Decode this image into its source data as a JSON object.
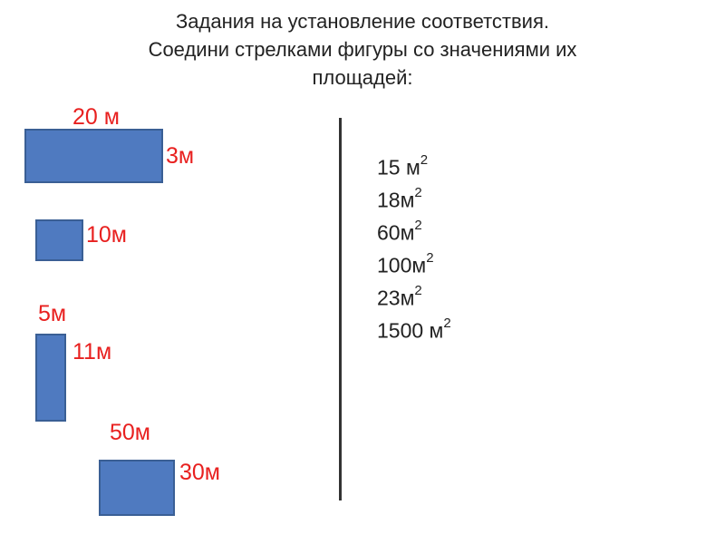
{
  "title": {
    "line1": "Задания на установление соответствия.",
    "line2": "Соедини стрелками фигуры со  значениями их",
    "line3": "площадей:"
  },
  "shapes": [
    {
      "width_label": "20 м",
      "height_label": "3м"
    },
    {
      "width_label": "",
      "height_label": "10м"
    },
    {
      "width_label": "5м",
      "height_label": "11м"
    },
    {
      "width_label": "50м",
      "height_label": "30м"
    }
  ],
  "answers": [
    {
      "value": "15 м",
      "exponent": "2"
    },
    {
      "value": "18м",
      "exponent": "2"
    },
    {
      "value": "60м",
      "exponent": "2"
    },
    {
      "value": "100м",
      "exponent": "2"
    },
    {
      "value": "23м",
      "exponent": "2"
    },
    {
      "value": "1500 м",
      "exponent": "2"
    }
  ],
  "colors": {
    "shape_fill": "#4f7ac0",
    "shape_border": "#3a5f95",
    "dimension_text": "#e8201f",
    "text": "#222222"
  }
}
